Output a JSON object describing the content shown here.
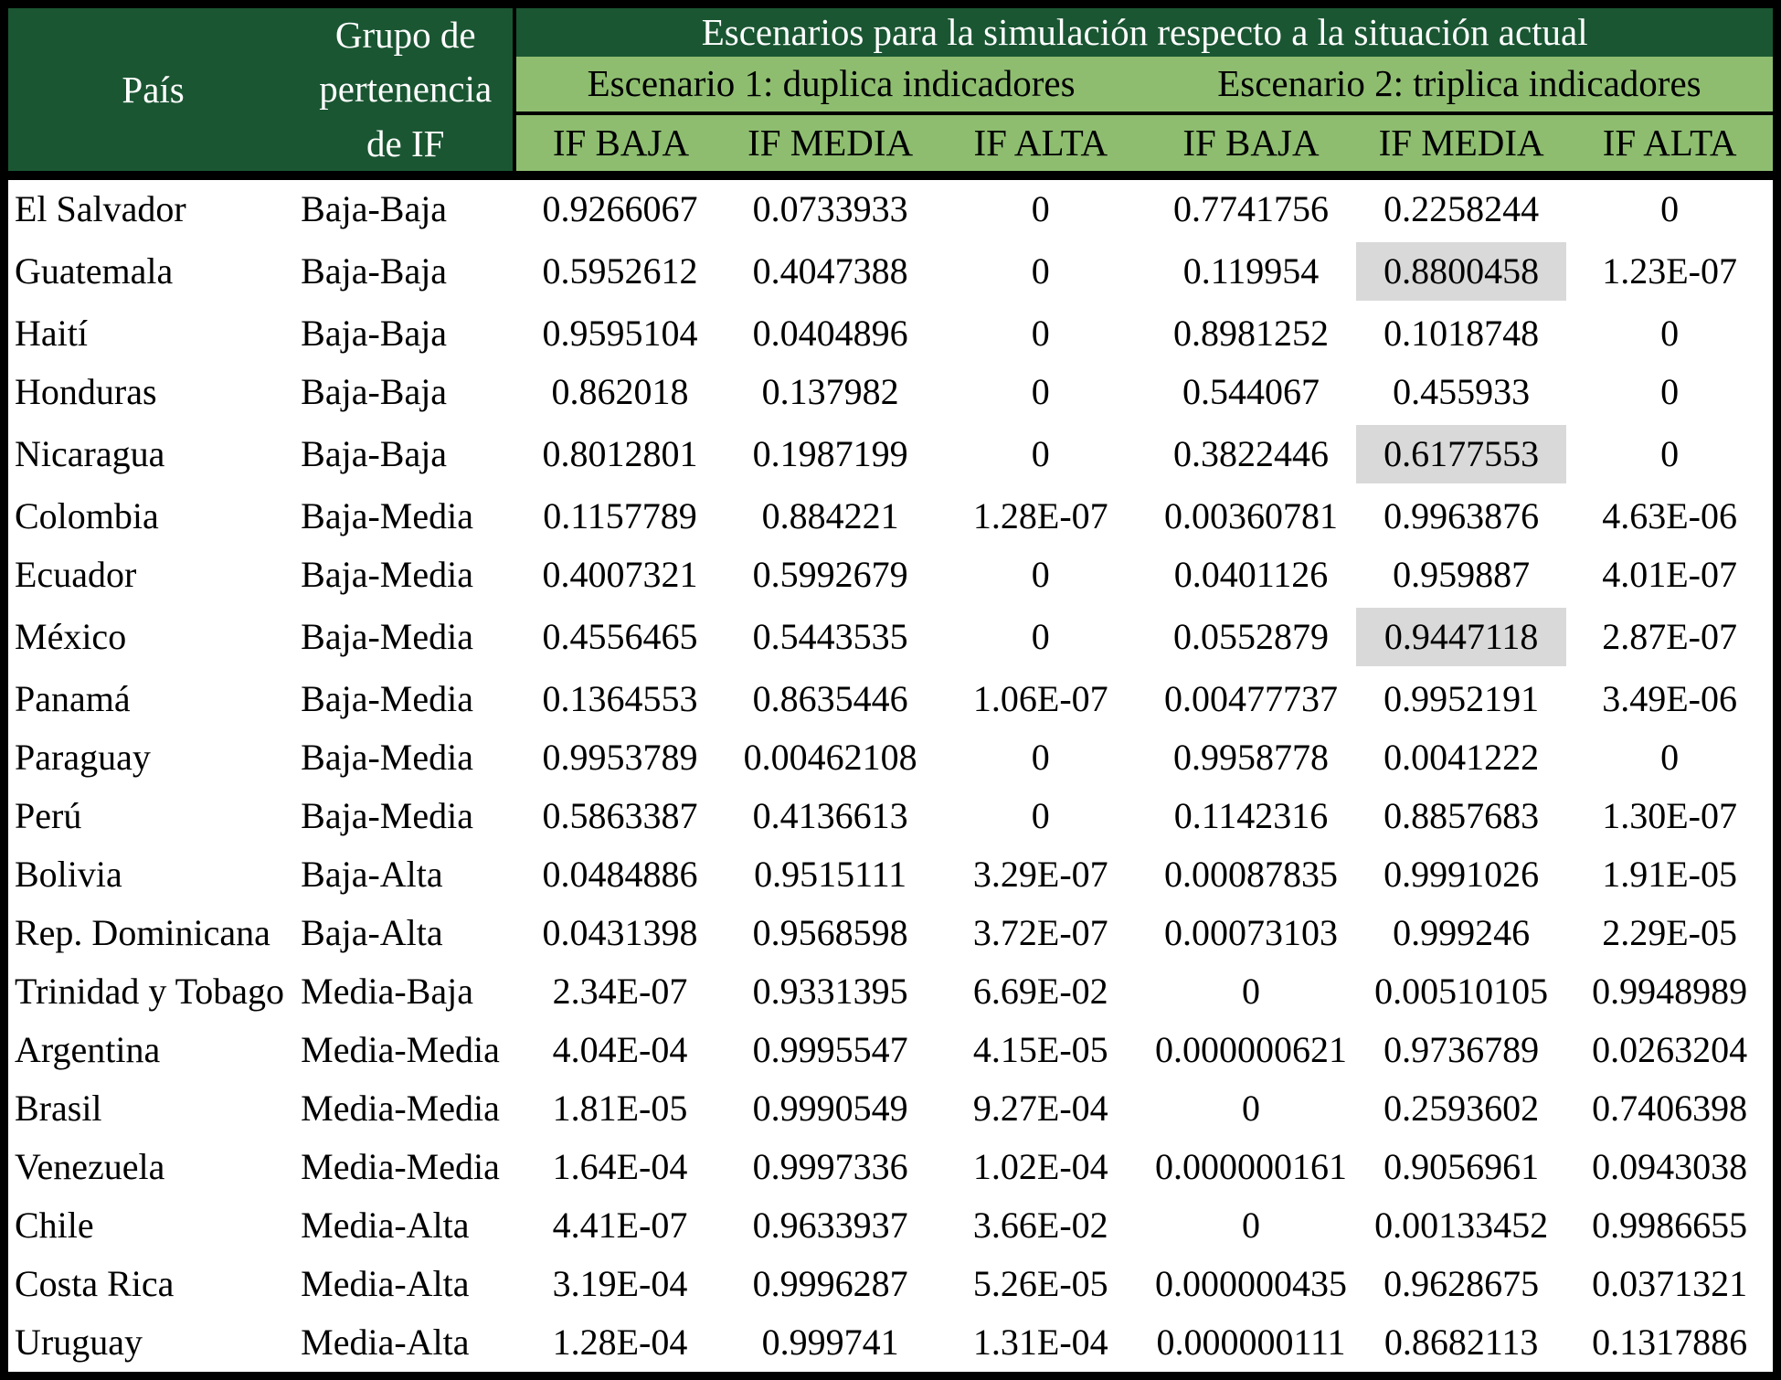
{
  "table": {
    "header": {
      "pais": "País",
      "grupo": "Grupo de\npertenencia\nde IF",
      "escenarios_title": "Escenarios para la simulación respecto a la situación actual",
      "escenario1": "Escenario 1: duplica indicadores",
      "escenario2": "Escenario 2: triplica indicadores",
      "subheaders": [
        "IF BAJA",
        "IF MEDIA",
        "IF ALTA",
        "IF BAJA",
        "IF MEDIA",
        "IF ALTA"
      ]
    },
    "colors": {
      "header_dark_green": "#1a5632",
      "header_light_green": "#8ebd70",
      "highlight_gray": "#d9d9d9",
      "border_black": "#000000",
      "body_text": "#000000"
    },
    "rows": [
      {
        "pais": "El Salvador",
        "grupo": "Baja-Baja",
        "values": [
          "0.9266067",
          "0.0733933",
          "0",
          "0.7741756",
          "0.2258244",
          "0"
        ],
        "highlight": []
      },
      {
        "pais": "Guatemala",
        "grupo": "Baja-Baja",
        "values": [
          "0.5952612",
          "0.4047388",
          "0",
          "0.119954",
          "0.8800458",
          "1.23E-07"
        ],
        "highlight": [
          4
        ]
      },
      {
        "pais": "Haití",
        "grupo": "Baja-Baja",
        "values": [
          "0.9595104",
          "0.0404896",
          "0",
          "0.8981252",
          "0.1018748",
          "0"
        ],
        "highlight": []
      },
      {
        "pais": "Honduras",
        "grupo": "Baja-Baja",
        "values": [
          "0.862018",
          "0.137982",
          "0",
          "0.544067",
          "0.455933",
          "0"
        ],
        "highlight": []
      },
      {
        "pais": "Nicaragua",
        "grupo": "Baja-Baja",
        "values": [
          "0.8012801",
          "0.1987199",
          "0",
          "0.3822446",
          "0.6177553",
          "0"
        ],
        "highlight": [
          4
        ]
      },
      {
        "pais": "Colombia",
        "grupo": "Baja-Media",
        "values": [
          "0.1157789",
          "0.884221",
          "1.28E-07",
          "0.00360781",
          "0.9963876",
          "4.63E-06"
        ],
        "highlight": []
      },
      {
        "pais": "Ecuador",
        "grupo": "Baja-Media",
        "values": [
          "0.4007321",
          "0.5992679",
          "0",
          "0.0401126",
          "0.959887",
          "4.01E-07"
        ],
        "highlight": []
      },
      {
        "pais": "México",
        "grupo": "Baja-Media",
        "values": [
          "0.4556465",
          "0.5443535",
          "0",
          "0.0552879",
          "0.9447118",
          "2.87E-07"
        ],
        "highlight": [
          4
        ]
      },
      {
        "pais": "Panamá",
        "grupo": "Baja-Media",
        "values": [
          "0.1364553",
          "0.8635446",
          "1.06E-07",
          "0.00477737",
          "0.9952191",
          "3.49E-06"
        ],
        "highlight": []
      },
      {
        "pais": "Paraguay",
        "grupo": "Baja-Media",
        "values": [
          "0.9953789",
          "0.00462108",
          "0",
          "0.9958778",
          "0.0041222",
          "0"
        ],
        "highlight": []
      },
      {
        "pais": "Perú",
        "grupo": "Baja-Media",
        "values": [
          "0.5863387",
          "0.4136613",
          "0",
          "0.1142316",
          "0.8857683",
          "1.30E-07"
        ],
        "highlight": []
      },
      {
        "pais": "Bolivia",
        "grupo": "Baja-Alta",
        "values": [
          "0.0484886",
          "0.9515111",
          "3.29E-07",
          "0.00087835",
          "0.9991026",
          "1.91E-05"
        ],
        "highlight": []
      },
      {
        "pais": "Rep. Dominicana",
        "grupo": "Baja-Alta",
        "values": [
          "0.0431398",
          "0.9568598",
          "3.72E-07",
          "0.00073103",
          "0.999246",
          "2.29E-05"
        ],
        "highlight": []
      },
      {
        "pais": "Trinidad y Tobago",
        "grupo": "Media-Baja",
        "values": [
          "2.34E-07",
          "0.9331395",
          "6.69E-02",
          "0",
          "0.00510105",
          "0.9948989"
        ],
        "highlight": []
      },
      {
        "pais": "Argentina",
        "grupo": "Media-Media",
        "values": [
          "4.04E-04",
          "0.9995547",
          "4.15E-05",
          "0.000000621",
          "0.9736789",
          "0.0263204"
        ],
        "highlight": []
      },
      {
        "pais": "Brasil",
        "grupo": "Media-Media",
        "values": [
          "1.81E-05",
          "0.9990549",
          "9.27E-04",
          "0",
          "0.2593602",
          "0.7406398"
        ],
        "highlight": []
      },
      {
        "pais": "Venezuela",
        "grupo": "Media-Media",
        "values": [
          "1.64E-04",
          "0.9997336",
          "1.02E-04",
          "0.000000161",
          "0.9056961",
          "0.0943038"
        ],
        "highlight": []
      },
      {
        "pais": "Chile",
        "grupo": "Media-Alta",
        "values": [
          "4.41E-07",
          "0.9633937",
          "3.66E-02",
          "0",
          "0.00133452",
          "0.9986655"
        ],
        "highlight": []
      },
      {
        "pais": "Costa Rica",
        "grupo": "Media-Alta",
        "values": [
          "3.19E-04",
          "0.9996287",
          "5.26E-05",
          "0.000000435",
          "0.9628675",
          "0.0371321"
        ],
        "highlight": []
      },
      {
        "pais": "Uruguay",
        "grupo": "Media-Alta",
        "values": [
          "1.28E-04",
          "0.999741",
          "1.31E-04",
          "0.000000111",
          "0.8682113",
          "0.1317886"
        ],
        "highlight": []
      }
    ]
  }
}
